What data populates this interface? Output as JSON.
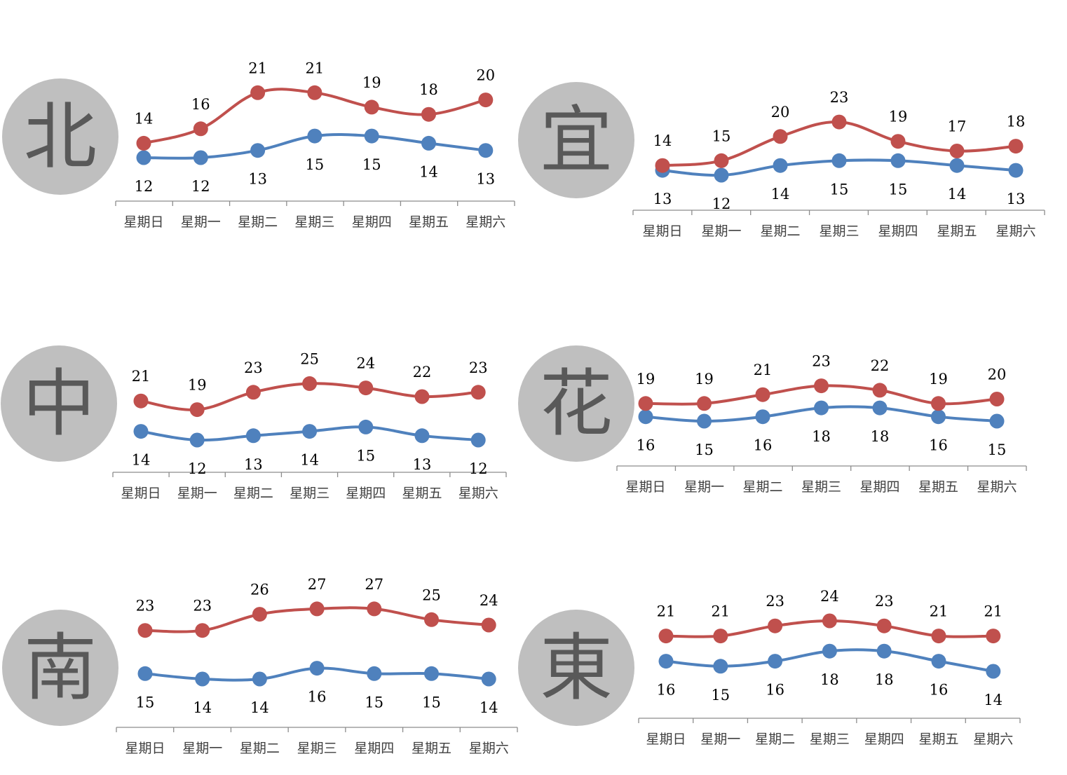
{
  "colors": {
    "high": "#c0504d",
    "low": "#4f81bd",
    "badge": "#bfbfbf",
    "badge_text": "#595959",
    "axis": "#8c8c8c"
  },
  "chart_data": [
    {
      "type": "line",
      "region": "北",
      "categories": [
        "星期日",
        "星期一",
        "星期二",
        "星期三",
        "星期四",
        "星期五",
        "星期六"
      ],
      "series": [
        {
          "key": "high",
          "values": [
            14,
            16,
            21,
            21,
            19,
            18,
            20
          ]
        },
        {
          "key": "low",
          "values": [
            12,
            12,
            13,
            15,
            15,
            14,
            13
          ]
        }
      ]
    },
    {
      "type": "line",
      "region": "宜",
      "categories": [
        "星期日",
        "星期一",
        "星期二",
        "星期三",
        "星期四",
        "星期五",
        "星期六"
      ],
      "series": [
        {
          "key": "high",
          "values": [
            14,
            15,
            20,
            23,
            19,
            17,
            18
          ]
        },
        {
          "key": "low",
          "values": [
            13,
            12,
            14,
            15,
            15,
            14,
            13
          ]
        }
      ]
    },
    {
      "type": "line",
      "region": "中",
      "categories": [
        "星期日",
        "星期一",
        "星期二",
        "星期三",
        "星期四",
        "星期五",
        "星期六"
      ],
      "series": [
        {
          "key": "high",
          "values": [
            21,
            19,
            23,
            25,
            24,
            22,
            23
          ]
        },
        {
          "key": "low",
          "values": [
            14,
            12,
            13,
            14,
            15,
            13,
            12
          ]
        }
      ]
    },
    {
      "type": "line",
      "region": "花",
      "categories": [
        "星期日",
        "星期一",
        "星期二",
        "星期三",
        "星期四",
        "星期五",
        "星期六"
      ],
      "series": [
        {
          "key": "high",
          "values": [
            19,
            19,
            21,
            23,
            22,
            19,
            20
          ]
        },
        {
          "key": "low",
          "values": [
            16,
            15,
            16,
            18,
            18,
            16,
            15
          ]
        }
      ]
    },
    {
      "type": "line",
      "region": "南",
      "categories": [
        "星期日",
        "星期一",
        "星期二",
        "星期三",
        "星期四",
        "星期五",
        "星期六"
      ],
      "series": [
        {
          "key": "high",
          "values": [
            23,
            23,
            26,
            27,
            27,
            25,
            24
          ]
        },
        {
          "key": "low",
          "values": [
            15,
            14,
            14,
            16,
            15,
            15,
            14
          ]
        }
      ]
    },
    {
      "type": "line",
      "region": "東",
      "categories": [
        "星期日",
        "星期一",
        "星期二",
        "星期三",
        "星期四",
        "星期五",
        "星期六"
      ],
      "series": [
        {
          "key": "high",
          "values": [
            21,
            21,
            23,
            24,
            23,
            21,
            21
          ]
        },
        {
          "key": "low",
          "values": [
            16,
            15,
            16,
            18,
            18,
            16,
            14
          ]
        }
      ]
    }
  ]
}
